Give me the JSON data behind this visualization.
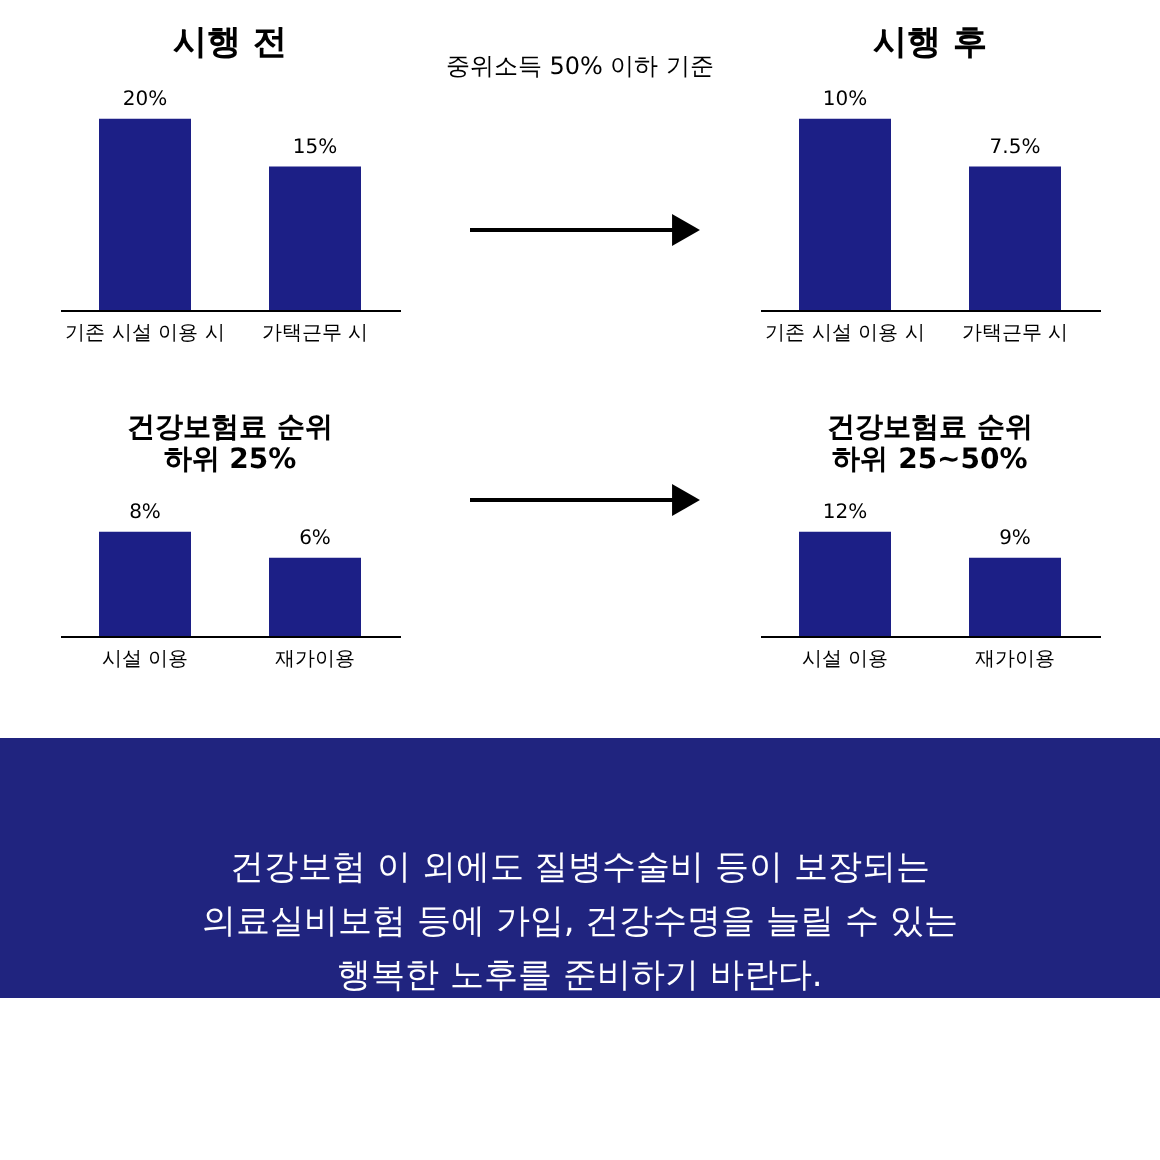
{
  "chart_data": [
    {
      "type": "bar",
      "title": "시행 전",
      "categories": [
        "기존 시설 이용 시",
        "가택근무 시"
      ],
      "values": [
        20,
        15
      ],
      "value_labels": [
        "20%",
        "15%"
      ],
      "color": "#1c1f86",
      "annotations": [
        "중위소득 50% 이하 기준"
      ]
    },
    {
      "type": "bar",
      "title": "시행 후",
      "categories": [
        "기존 시설 이용 시",
        "가택근무 시"
      ],
      "values": [
        10,
        7.5
      ],
      "value_labels": [
        "10%",
        "7.5%"
      ],
      "color": "#1c1f86"
    },
    {
      "type": "bar",
      "title": "건강보험료 순위\n하위 25%",
      "categories": [
        "시설 이용",
        "재가이용"
      ],
      "values": [
        8,
        6
      ],
      "value_labels": [
        "8%",
        "6%"
      ],
      "color": "#1c1f86"
    },
    {
      "type": "bar",
      "title": "건강보험료 순위\n하위 25~50%",
      "categories": [
        "시설 이용",
        "재가이용"
      ],
      "values": [
        12,
        9
      ],
      "value_labels": [
        "12%",
        "9%"
      ],
      "color": "#1c1f86",
      "annotations": [
        "건강보험 이 외에도 질병수술비 등이 보장되는\n의료실비보험 등에 가입, 건강수명을 늘릴 수 있는\n행복한 노후를 준비하기 바란다."
      ]
    }
  ]
}
